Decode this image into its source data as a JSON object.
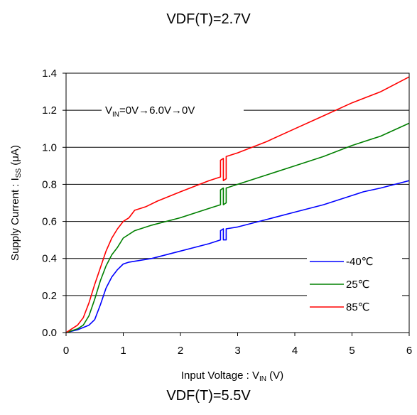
{
  "page": {
    "title": "VDF(T)=2.7V",
    "footer_title": "VDF(T)=5.5V"
  },
  "chart_data": {
    "type": "line",
    "title": "VDF(T)=2.7V",
    "xlabel": {
      "main": "Input Voltage : V",
      "sub": "IN",
      "unit": " (V)"
    },
    "ylabel": {
      "main": "Supply Current : I",
      "sub": "SS",
      "unit": " (μA)"
    },
    "xlim": [
      0,
      6
    ],
    "ylim": [
      0,
      1.4
    ],
    "xticks": [
      "0",
      "1",
      "2",
      "3",
      "4",
      "5",
      "6"
    ],
    "yticks": [
      "0.0",
      "0.2",
      "0.4",
      "0.6",
      "0.8",
      "1.0",
      "1.2",
      "1.4"
    ],
    "grid": true,
    "legend_position": "bottom-right",
    "annotation": {
      "pre": "V",
      "sub": "IN",
      "post": "=0V→6.0V→0V"
    },
    "series": [
      {
        "name": "-40℃",
        "color": "#0000ff",
        "points": [
          [
            0,
            0
          ],
          [
            0.2,
            0.015
          ],
          [
            0.4,
            0.04
          ],
          [
            0.5,
            0.07
          ],
          [
            0.6,
            0.15
          ],
          [
            0.7,
            0.24
          ],
          [
            0.8,
            0.3
          ],
          [
            0.9,
            0.34
          ],
          [
            1.0,
            0.37
          ],
          [
            1.1,
            0.38
          ],
          [
            1.5,
            0.4
          ],
          [
            2.0,
            0.44
          ],
          [
            2.5,
            0.48
          ],
          [
            2.7,
            0.5
          ],
          [
            2.7,
            0.55
          ],
          [
            2.75,
            0.56
          ],
          [
            2.75,
            0.5
          ],
          [
            2.8,
            0.5
          ],
          [
            2.8,
            0.56
          ],
          [
            3.0,
            0.57
          ],
          [
            3.5,
            0.61
          ],
          [
            4.0,
            0.65
          ],
          [
            4.5,
            0.69
          ],
          [
            5.0,
            0.74
          ],
          [
            5.2,
            0.76
          ],
          [
            5.5,
            0.78
          ],
          [
            6.0,
            0.82
          ]
        ]
      },
      {
        "name": "25℃",
        "color": "#008000",
        "points": [
          [
            0,
            0
          ],
          [
            0.2,
            0.02
          ],
          [
            0.3,
            0.04
          ],
          [
            0.4,
            0.09
          ],
          [
            0.5,
            0.18
          ],
          [
            0.6,
            0.28
          ],
          [
            0.7,
            0.36
          ],
          [
            0.8,
            0.42
          ],
          [
            0.9,
            0.46
          ],
          [
            1.0,
            0.51
          ],
          [
            1.2,
            0.55
          ],
          [
            1.5,
            0.58
          ],
          [
            2.0,
            0.62
          ],
          [
            2.5,
            0.67
          ],
          [
            2.7,
            0.69
          ],
          [
            2.7,
            0.77
          ],
          [
            2.75,
            0.78
          ],
          [
            2.75,
            0.69
          ],
          [
            2.8,
            0.7
          ],
          [
            2.8,
            0.78
          ],
          [
            3.0,
            0.8
          ],
          [
            3.5,
            0.85
          ],
          [
            4.0,
            0.9
          ],
          [
            4.5,
            0.95
          ],
          [
            5.0,
            1.01
          ],
          [
            5.5,
            1.06
          ],
          [
            6.0,
            1.13
          ]
        ]
      },
      {
        "name": "85℃",
        "color": "#ff0000",
        "points": [
          [
            0,
            0
          ],
          [
            0.1,
            0.02
          ],
          [
            0.2,
            0.04
          ],
          [
            0.3,
            0.08
          ],
          [
            0.4,
            0.16
          ],
          [
            0.5,
            0.26
          ],
          [
            0.6,
            0.35
          ],
          [
            0.7,
            0.44
          ],
          [
            0.8,
            0.51
          ],
          [
            0.9,
            0.56
          ],
          [
            1.0,
            0.6
          ],
          [
            1.1,
            0.62
          ],
          [
            1.2,
            0.66
          ],
          [
            1.4,
            0.68
          ],
          [
            1.6,
            0.71
          ],
          [
            2.0,
            0.76
          ],
          [
            2.5,
            0.82
          ],
          [
            2.7,
            0.84
          ],
          [
            2.7,
            0.93
          ],
          [
            2.75,
            0.94
          ],
          [
            2.75,
            0.82
          ],
          [
            2.8,
            0.83
          ],
          [
            2.8,
            0.95
          ],
          [
            3.0,
            0.97
          ],
          [
            3.5,
            1.03
          ],
          [
            4.0,
            1.1
          ],
          [
            4.5,
            1.17
          ],
          [
            5.0,
            1.24
          ],
          [
            5.5,
            1.3
          ],
          [
            6.0,
            1.38
          ]
        ]
      }
    ]
  }
}
